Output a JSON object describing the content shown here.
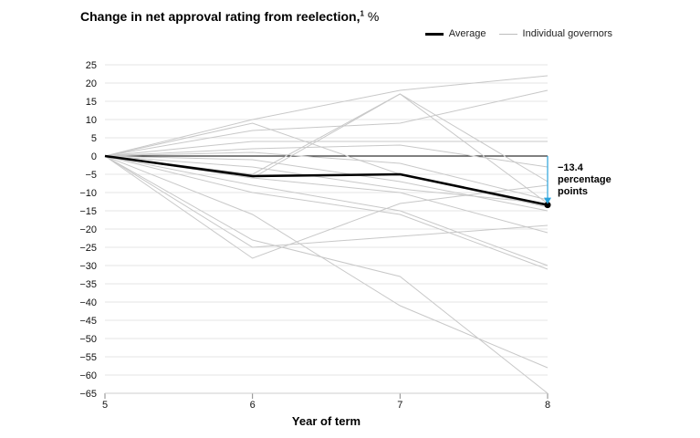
{
  "chart_data": {
    "type": "line",
    "title": "Change in net approval rating from reelection,",
    "title_footnote": "1",
    "title_unit": "%",
    "xlabel": "Year of term",
    "ylabel": "",
    "x": [
      5,
      6,
      7,
      8
    ],
    "xlim": [
      5,
      8
    ],
    "ylim": [
      -65,
      25
    ],
    "y_ticks": [
      25,
      20,
      15,
      10,
      5,
      0,
      -5,
      -10,
      -15,
      -20,
      -25,
      -30,
      -35,
      -40,
      -45,
      -50,
      -55,
      -60,
      -65
    ],
    "y_tick_labels": [
      "25",
      "20",
      "15",
      "10",
      "5",
      "0",
      "−5",
      "−10",
      "−15",
      "−20",
      "−25",
      "−30",
      "−35",
      "−40",
      "−45",
      "−50",
      "−55",
      "−60",
      "−65"
    ],
    "x_tick_labels": [
      "5",
      "6",
      "7",
      "8"
    ],
    "grid": true,
    "legend": {
      "position": "top-right",
      "entries": [
        {
          "label": "Average",
          "color": "#000000"
        },
        {
          "label": "Individual governors",
          "color": "#bdbdbd"
        }
      ]
    },
    "average": {
      "name": "Average",
      "color": "#000000",
      "values": [
        0,
        -5.5,
        -5,
        -13.4
      ]
    },
    "individual_color": "#c8c8c8",
    "individuals": [
      [
        0,
        10,
        18,
        22
      ],
      [
        0,
        9,
        -5,
        -14
      ],
      [
        0,
        7,
        9,
        18
      ],
      [
        0,
        4,
        4,
        4
      ],
      [
        0,
        2,
        3,
        -3
      ],
      [
        0,
        -6,
        17,
        -13
      ],
      [
        0,
        -5,
        17,
        -7
      ],
      [
        0,
        1,
        -2,
        -12
      ],
      [
        0,
        -1,
        -7,
        -15
      ],
      [
        0,
        -3,
        -9,
        -13
      ],
      [
        0,
        -6,
        -10,
        -21
      ],
      [
        0,
        -8,
        -15,
        -30
      ],
      [
        0,
        -10,
        -16,
        -31
      ],
      [
        0,
        -16,
        -41,
        -58
      ],
      [
        0,
        -23,
        -33,
        -65
      ],
      [
        0,
        -25,
        -22,
        -19
      ],
      [
        0,
        -28,
        -13,
        -8
      ]
    ],
    "annotation": {
      "text_lines": [
        "−13.4",
        "percentage",
        "points"
      ],
      "from": 0,
      "to": -13.4,
      "at_x": 8,
      "color": "#29a3dc"
    }
  }
}
